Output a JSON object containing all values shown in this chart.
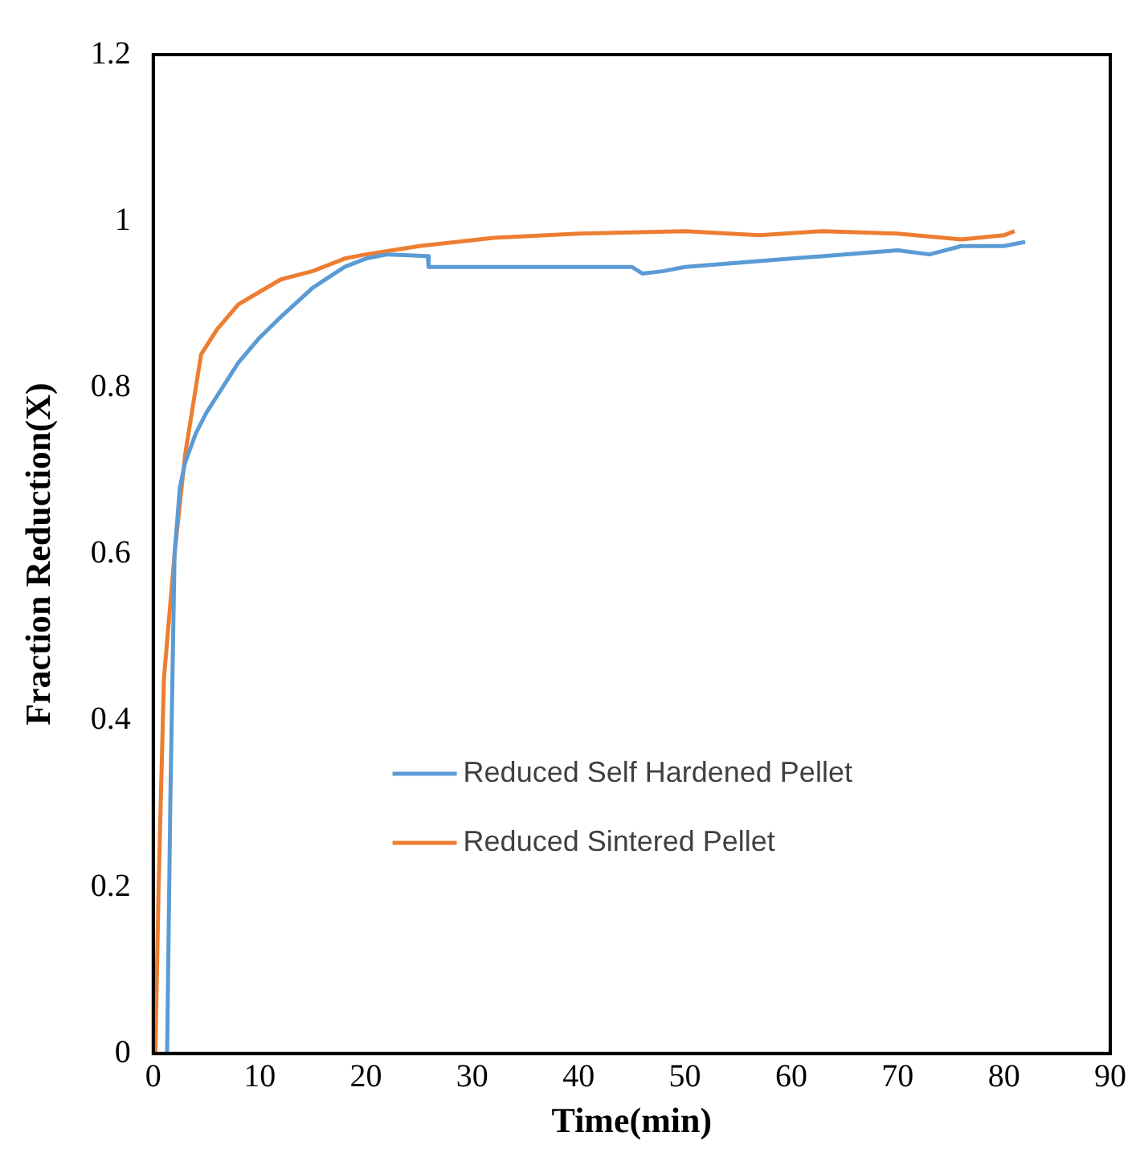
{
  "chart_data": {
    "type": "line",
    "xlabel": "Time(min)",
    "ylabel": "Fraction Reduction(X)",
    "xlim": [
      0,
      90
    ],
    "ylim": [
      0,
      1.2
    ],
    "xticks": [
      0,
      10,
      20,
      30,
      40,
      50,
      60,
      70,
      80,
      90
    ],
    "yticks": [
      0,
      0.2,
      0.4,
      0.6,
      0.8,
      1,
      1.2
    ],
    "grid": false,
    "legend": "center",
    "marker": "none",
    "line_style": "solid",
    "series": [
      {
        "name": "Reduced Self Hardened Pellet",
        "color": "#5b9bd5",
        "x": [
          1.3,
          1.6,
          2,
          2.5,
          3,
          4,
          5,
          6,
          7,
          8,
          10,
          12,
          15,
          18,
          20,
          22,
          25.8,
          25.9,
          30,
          35,
          40,
          45,
          46,
          48,
          50,
          55,
          60,
          65,
          70,
          73,
          76,
          80,
          82
        ],
        "values": [
          0,
          0.3,
          0.6,
          0.68,
          0.71,
          0.745,
          0.77,
          0.79,
          0.81,
          0.83,
          0.86,
          0.885,
          0.92,
          0.945,
          0.955,
          0.96,
          0.958,
          0.945,
          0.945,
          0.945,
          0.945,
          0.945,
          0.937,
          0.94,
          0.945,
          0.95,
          0.955,
          0.96,
          0.965,
          0.96,
          0.97,
          0.97,
          0.975
        ]
      },
      {
        "name": "Reduced Sintered Pellet",
        "color": "#ed7d31",
        "x": [
          0.2,
          0.5,
          1,
          2,
          3,
          3.5,
          4.5,
          6,
          8,
          10,
          12,
          15,
          18,
          20,
          25,
          32,
          40,
          50,
          57,
          63,
          70,
          76,
          80,
          81
        ],
        "values": [
          0,
          0.2,
          0.45,
          0.6,
          0.72,
          0.76,
          0.84,
          0.87,
          0.9,
          0.915,
          0.93,
          0.94,
          0.955,
          0.96,
          0.97,
          0.98,
          0.985,
          0.988,
          0.983,
          0.988,
          0.985,
          0.978,
          0.983,
          0.988
        ]
      }
    ]
  }
}
